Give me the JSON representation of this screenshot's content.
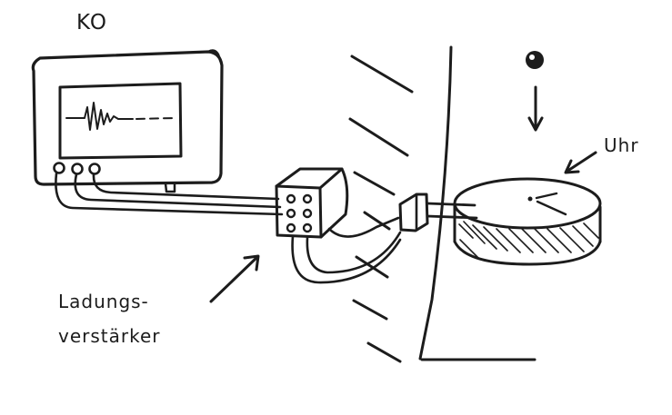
{
  "labels": {
    "oscilloscope": "KO",
    "clock": "Uhr",
    "charge_amplifier_line1": "Ladungs-",
    "charge_amplifier_line2": "verstärker"
  },
  "components": {
    "oscilloscope_icon": "oscilloscope-icon",
    "charge_amplifier_icon": "charge-amplifier-box-icon",
    "sensor_icon": "piezo-sensor-icon",
    "clock_icon": "clock-disc-icon",
    "ball_icon": "falling-ball-icon"
  },
  "colors": {
    "ink": "#1c1c1c",
    "background": "#ffffff"
  }
}
